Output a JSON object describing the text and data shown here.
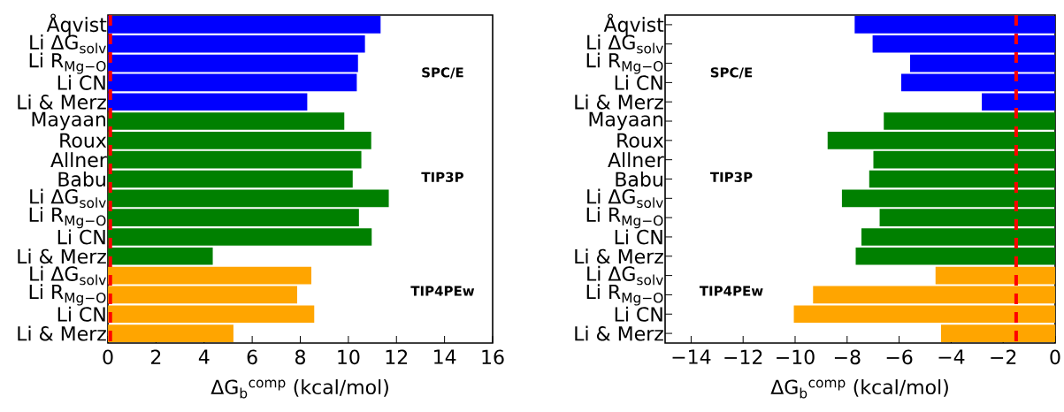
{
  "chart_data": [
    {
      "type": "bar",
      "orientation": "horizontal",
      "xlabel": "ΔG$_{b}$$^{comp}$  (kcal/mol)",
      "categories": [
        "Åqvist",
        "Li ΔG$_{solv}$",
        "Li R$_{Mg−O}$",
        "Li CN",
        "Li & Merz",
        "Mayaan",
        "Roux",
        "Allner",
        "Babu",
        "Li ΔG$_{solv}$",
        "Li R$_{Mg−O}$",
        "Li CN",
        "Li & Merz",
        "Li ΔG$_{solv}$",
        "Li R$_{Mg−O}$",
        "Li CN",
        "Li & Merz"
      ],
      "values": [
        11.34,
        10.69,
        10.4,
        10.35,
        8.29,
        9.83,
        10.95,
        10.54,
        10.18,
        11.68,
        10.44,
        10.97,
        4.36,
        8.46,
        7.87,
        8.58,
        5.22
      ],
      "colors": [
        "#0000ff",
        "#0000ff",
        "#0000ff",
        "#0000ff",
        "#0000ff",
        "#008000",
        "#008000",
        "#008000",
        "#008000",
        "#008000",
        "#008000",
        "#008000",
        "#008000",
        "#ffa500",
        "#ffa500",
        "#ffa500",
        "#ffa500"
      ],
      "xlim": [
        0,
        16
      ],
      "xticks": [
        0,
        2,
        4,
        6,
        8,
        10,
        12,
        14,
        16
      ],
      "ref_lines": [
        {
          "axis": "x",
          "value": 0.1,
          "color": "#ff0000",
          "line_style": "dashed"
        }
      ],
      "annotations": [
        "SPC/E",
        "TIP3P",
        "TIP4PEw"
      ]
    },
    {
      "type": "bar",
      "orientation": "horizontal",
      "xlabel": "ΔG$_{b}$$^{comp}$  (kcal/mol)",
      "categories": [
        "Åqvist",
        "Li ΔG$_{solv}$",
        "Li R$_{Mg−O}$",
        "Li CN",
        "Li & Merz",
        "Mayaan",
        "Roux",
        "Allner",
        "Babu",
        "Li ΔG$_{solv}$",
        "Li R$_{Mg−O}$",
        "Li CN",
        "Li & Merz",
        "Li ΔG$_{solv}$",
        "Li R$_{Mg−O}$",
        "Li CN",
        "Li & Merz"
      ],
      "values": [
        -7.71,
        -7.02,
        -5.58,
        -5.92,
        -2.82,
        -6.59,
        -8.75,
        -6.99,
        -7.15,
        -8.2,
        -6.75,
        -7.45,
        -7.67,
        -4.6,
        -9.31,
        -10.05,
        -4.39
      ],
      "colors": [
        "#0000ff",
        "#0000ff",
        "#0000ff",
        "#0000ff",
        "#0000ff",
        "#008000",
        "#008000",
        "#008000",
        "#008000",
        "#008000",
        "#008000",
        "#008000",
        "#008000",
        "#ffa500",
        "#ffa500",
        "#ffa500",
        "#ffa500"
      ],
      "xlim": [
        -15,
        0
      ],
      "xticks": [
        {
          "value": -14,
          "label": "−14"
        },
        {
          "value": -12,
          "label": "−12"
        },
        {
          "value": -10,
          "label": "−10"
        },
        {
          "value": -8,
          "label": "−8"
        },
        {
          "value": -6,
          "label": "−6"
        },
        {
          "value": -4,
          "label": "−4"
        },
        {
          "value": -2,
          "label": "−2"
        },
        0
      ],
      "ref_lines": [
        {
          "axis": "x",
          "value": -1.5,
          "color": "#ff0000",
          "line_style": "dashed"
        }
      ],
      "annotations": [
        "SPC/E",
        "TIP3P",
        "TIP4PEw"
      ]
    }
  ]
}
